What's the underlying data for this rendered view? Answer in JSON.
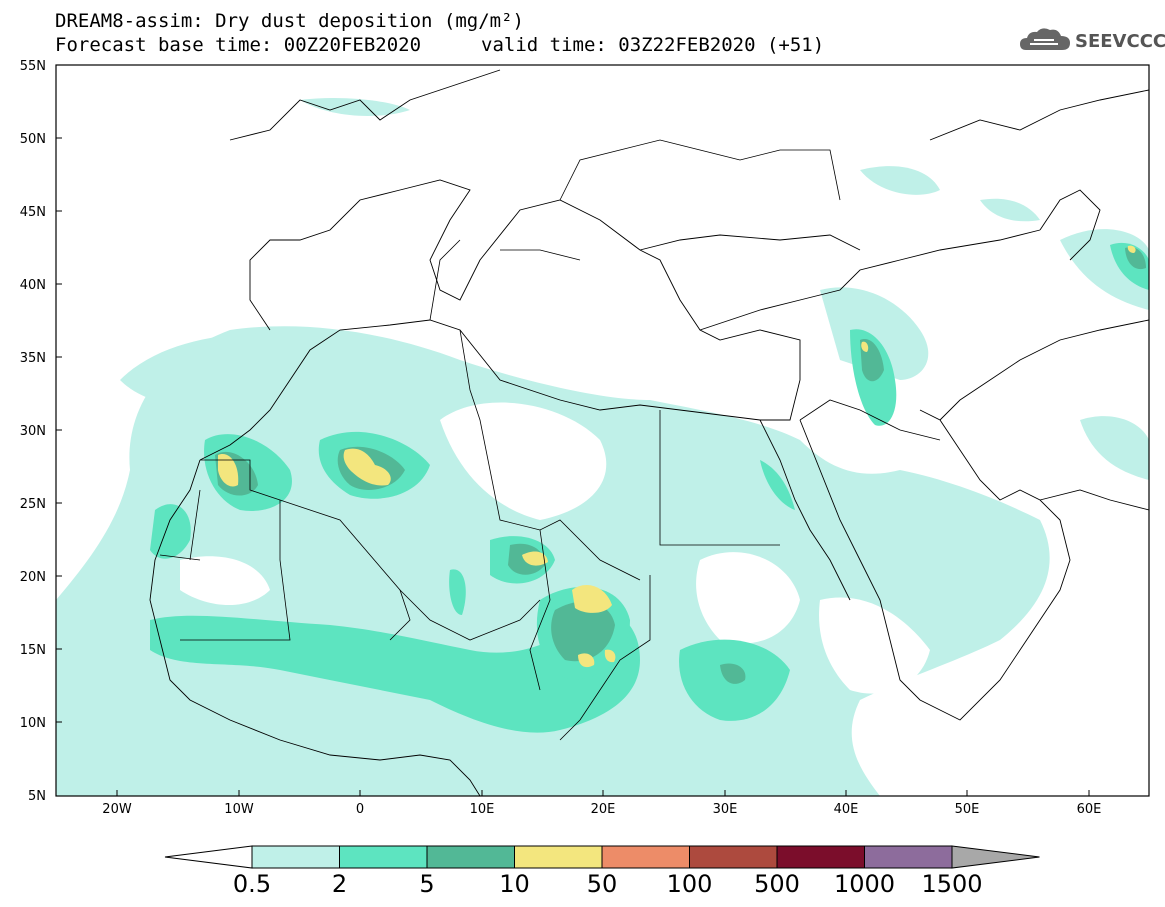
{
  "title": {
    "line1": "DREAM8-assim: Dry dust deposition (mg/m²)",
    "line2_base": "Forecast base time: 00Z20FEB2020",
    "line2_valid": "valid time: 03Z22FEB2020 (+51)"
  },
  "logo_text": "SEEVCCC",
  "axes": {
    "lon_labels": [
      "20W",
      "10W",
      "0",
      "10E",
      "20E",
      "30E",
      "40E",
      "50E",
      "60E"
    ],
    "lat_labels": [
      "55N",
      "50N",
      "45N",
      "40N",
      "35N",
      "30N",
      "25N",
      "20N",
      "15N",
      "10N",
      "5N"
    ]
  },
  "colorbar": {
    "labels": [
      "0.5",
      "2",
      "5",
      "10",
      "50",
      "100",
      "500",
      "1000",
      "1500"
    ],
    "colors": [
      "#bff0e8",
      "#5de4c0",
      "#52b896",
      "#f3e67e",
      "#ed8c68",
      "#ad4a3e",
      "#7b0d2b",
      "#8d6c9c",
      "#a8a8a8"
    ]
  }
}
